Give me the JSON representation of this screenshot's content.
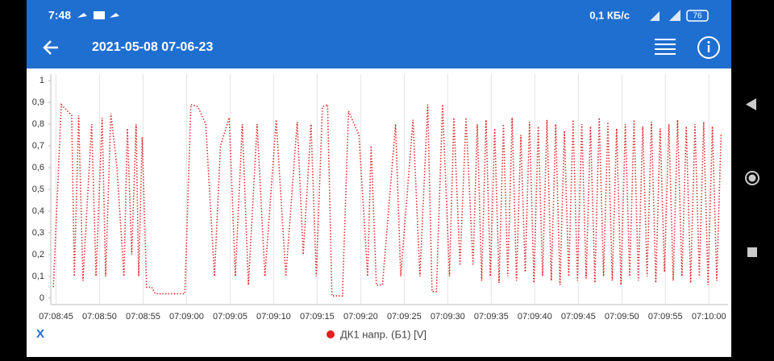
{
  "status_bar": {
    "time": "7:48",
    "speed": "0,1 КБ/с",
    "battery": "76"
  },
  "app_bar": {
    "title": "2021-05-08 07-06-23"
  },
  "axis_button": "X",
  "chart_data": {
    "type": "line",
    "xlim": [
      25724.4,
      25802.2
    ],
    "ylim": [
      -0.03,
      1.03
    ],
    "xticks": [
      {
        "value": 25725,
        "label": "07:08:45"
      },
      {
        "value": 25730,
        "label": "07:08:50"
      },
      {
        "value": 25735,
        "label": "07:08:55"
      },
      {
        "value": 25740,
        "label": "07:09:00"
      },
      {
        "value": 25745,
        "label": "07:09:05"
      },
      {
        "value": 25750,
        "label": "07:09:10"
      },
      {
        "value": 25755,
        "label": "07:09:15"
      },
      {
        "value": 25760,
        "label": "07:09:20"
      },
      {
        "value": 25765,
        "label": "07:09:25"
      },
      {
        "value": 25770,
        "label": "07:09:30"
      },
      {
        "value": 25775,
        "label": "07:09:35"
      },
      {
        "value": 25780,
        "label": "07:09:40"
      },
      {
        "value": 25785,
        "label": "07:09:45"
      },
      {
        "value": 25790,
        "label": "07:09:50"
      },
      {
        "value": 25795,
        "label": "07:09:55"
      },
      {
        "value": 25800,
        "label": "07:10:00"
      }
    ],
    "yticks": [
      0,
      {
        "value": 0.1,
        "label": "0,1"
      },
      {
        "value": 0.2,
        "label": "0,2"
      },
      {
        "value": 0.3,
        "label": "0,3"
      },
      {
        "value": 0.4,
        "label": "0,4"
      },
      {
        "value": 0.5,
        "label": "0,5"
      },
      {
        "value": 0.6,
        "label": "0,6"
      },
      {
        "value": 0.7,
        "label": "0,7"
      },
      {
        "value": 0.8,
        "label": "0,8"
      },
      {
        "value": 0.9,
        "label": "0,9"
      },
      1
    ],
    "grid": "x",
    "x": [
      25724.7,
      25725.6,
      25726.8,
      25727.1,
      25727.6,
      25728.1,
      25729.1,
      25729.6,
      25730.3,
      25730.7,
      25731.3,
      25732.0,
      25732.8,
      25733.2,
      25733.7,
      25734.2,
      25734.5,
      25734.9,
      25735.4,
      25736.0,
      25736.4,
      25739.8,
      25740.5,
      25741.3,
      25742.2,
      25743.2,
      25743.9,
      25744.9,
      25745.6,
      25746.4,
      25747.1,
      25748.1,
      25749.0,
      25750.3,
      25751.4,
      25752.7,
      25753.4,
      25754.3,
      25754.9,
      25755.6,
      25756.2,
      25756.7,
      25757.9,
      25758.6,
      25759.8,
      25760.8,
      25761.2,
      25761.8,
      25762.5,
      25764.0,
      25764.6,
      25766.0,
      25766.8,
      25767.7,
      25768.2,
      25768.7,
      25769.4,
      25770.2,
      25770.7,
      25771.4,
      25772.1,
      25772.9,
      25773.4,
      25773.9,
      25774.4,
      25774.9,
      25775.4,
      25775.9,
      25776.4,
      25776.9,
      25777.4,
      25777.9,
      25778.4,
      25778.9,
      25779.4,
      25779.9,
      25780.4,
      25780.9,
      25781.4,
      25781.9,
      25782.4,
      25782.9,
      25783.4,
      25783.9,
      25784.4,
      25784.9,
      25785.4,
      25785.9,
      25786.4,
      25786.9,
      25787.4,
      25787.9,
      25788.4,
      25788.9,
      25789.4,
      25789.9,
      25790.4,
      25790.9,
      25791.4,
      25791.9,
      25792.4,
      25792.9,
      25793.4,
      25793.9,
      25794.4,
      25794.9,
      25795.4,
      25795.9,
      25796.4,
      25796.9,
      25797.4,
      25797.9,
      25798.4,
      25798.9,
      25799.4,
      25799.9,
      25800.4,
      25800.9,
      25801.4
    ],
    "series": [
      {
        "name": "ДК1 напр. (Б1) [V]",
        "color": "#e02020",
        "values": [
          0.05,
          0.89,
          0.84,
          0.1,
          0.84,
          0.08,
          0.8,
          0.1,
          0.83,
          0.1,
          0.85,
          0.6,
          0.1,
          0.78,
          0.2,
          0.8,
          0.1,
          0.74,
          0.05,
          0.05,
          0.02,
          0.02,
          0.89,
          0.88,
          0.8,
          0.1,
          0.7,
          0.83,
          0.1,
          0.8,
          0.06,
          0.8,
          0.1,
          0.82,
          0.1,
          0.81,
          0.2,
          0.8,
          0.1,
          0.88,
          0.89,
          0.01,
          0.01,
          0.86,
          0.75,
          0.1,
          0.7,
          0.06,
          0.06,
          0.8,
          0.1,
          0.82,
          0.1,
          0.89,
          0.03,
          0.03,
          0.89,
          0.1,
          0.83,
          0.15,
          0.83,
          0.15,
          0.8,
          0.08,
          0.82,
          0.1,
          0.78,
          0.07,
          0.8,
          0.1,
          0.83,
          0.08,
          0.75,
          0.12,
          0.81,
          0.07,
          0.79,
          0.1,
          0.82,
          0.08,
          0.8,
          0.06,
          0.77,
          0.1,
          0.82,
          0.08,
          0.8,
          0.09,
          0.79,
          0.07,
          0.83,
          0.1,
          0.81,
          0.08,
          0.78,
          0.06,
          0.8,
          0.1,
          0.82,
          0.08,
          0.79,
          0.1,
          0.81,
          0.07,
          0.78,
          0.12,
          0.8,
          0.08,
          0.82,
          0.1,
          0.79,
          0.07,
          0.8,
          0.1,
          0.81,
          0.06,
          0.79,
          0.08,
          0.76
        ]
      }
    ]
  }
}
